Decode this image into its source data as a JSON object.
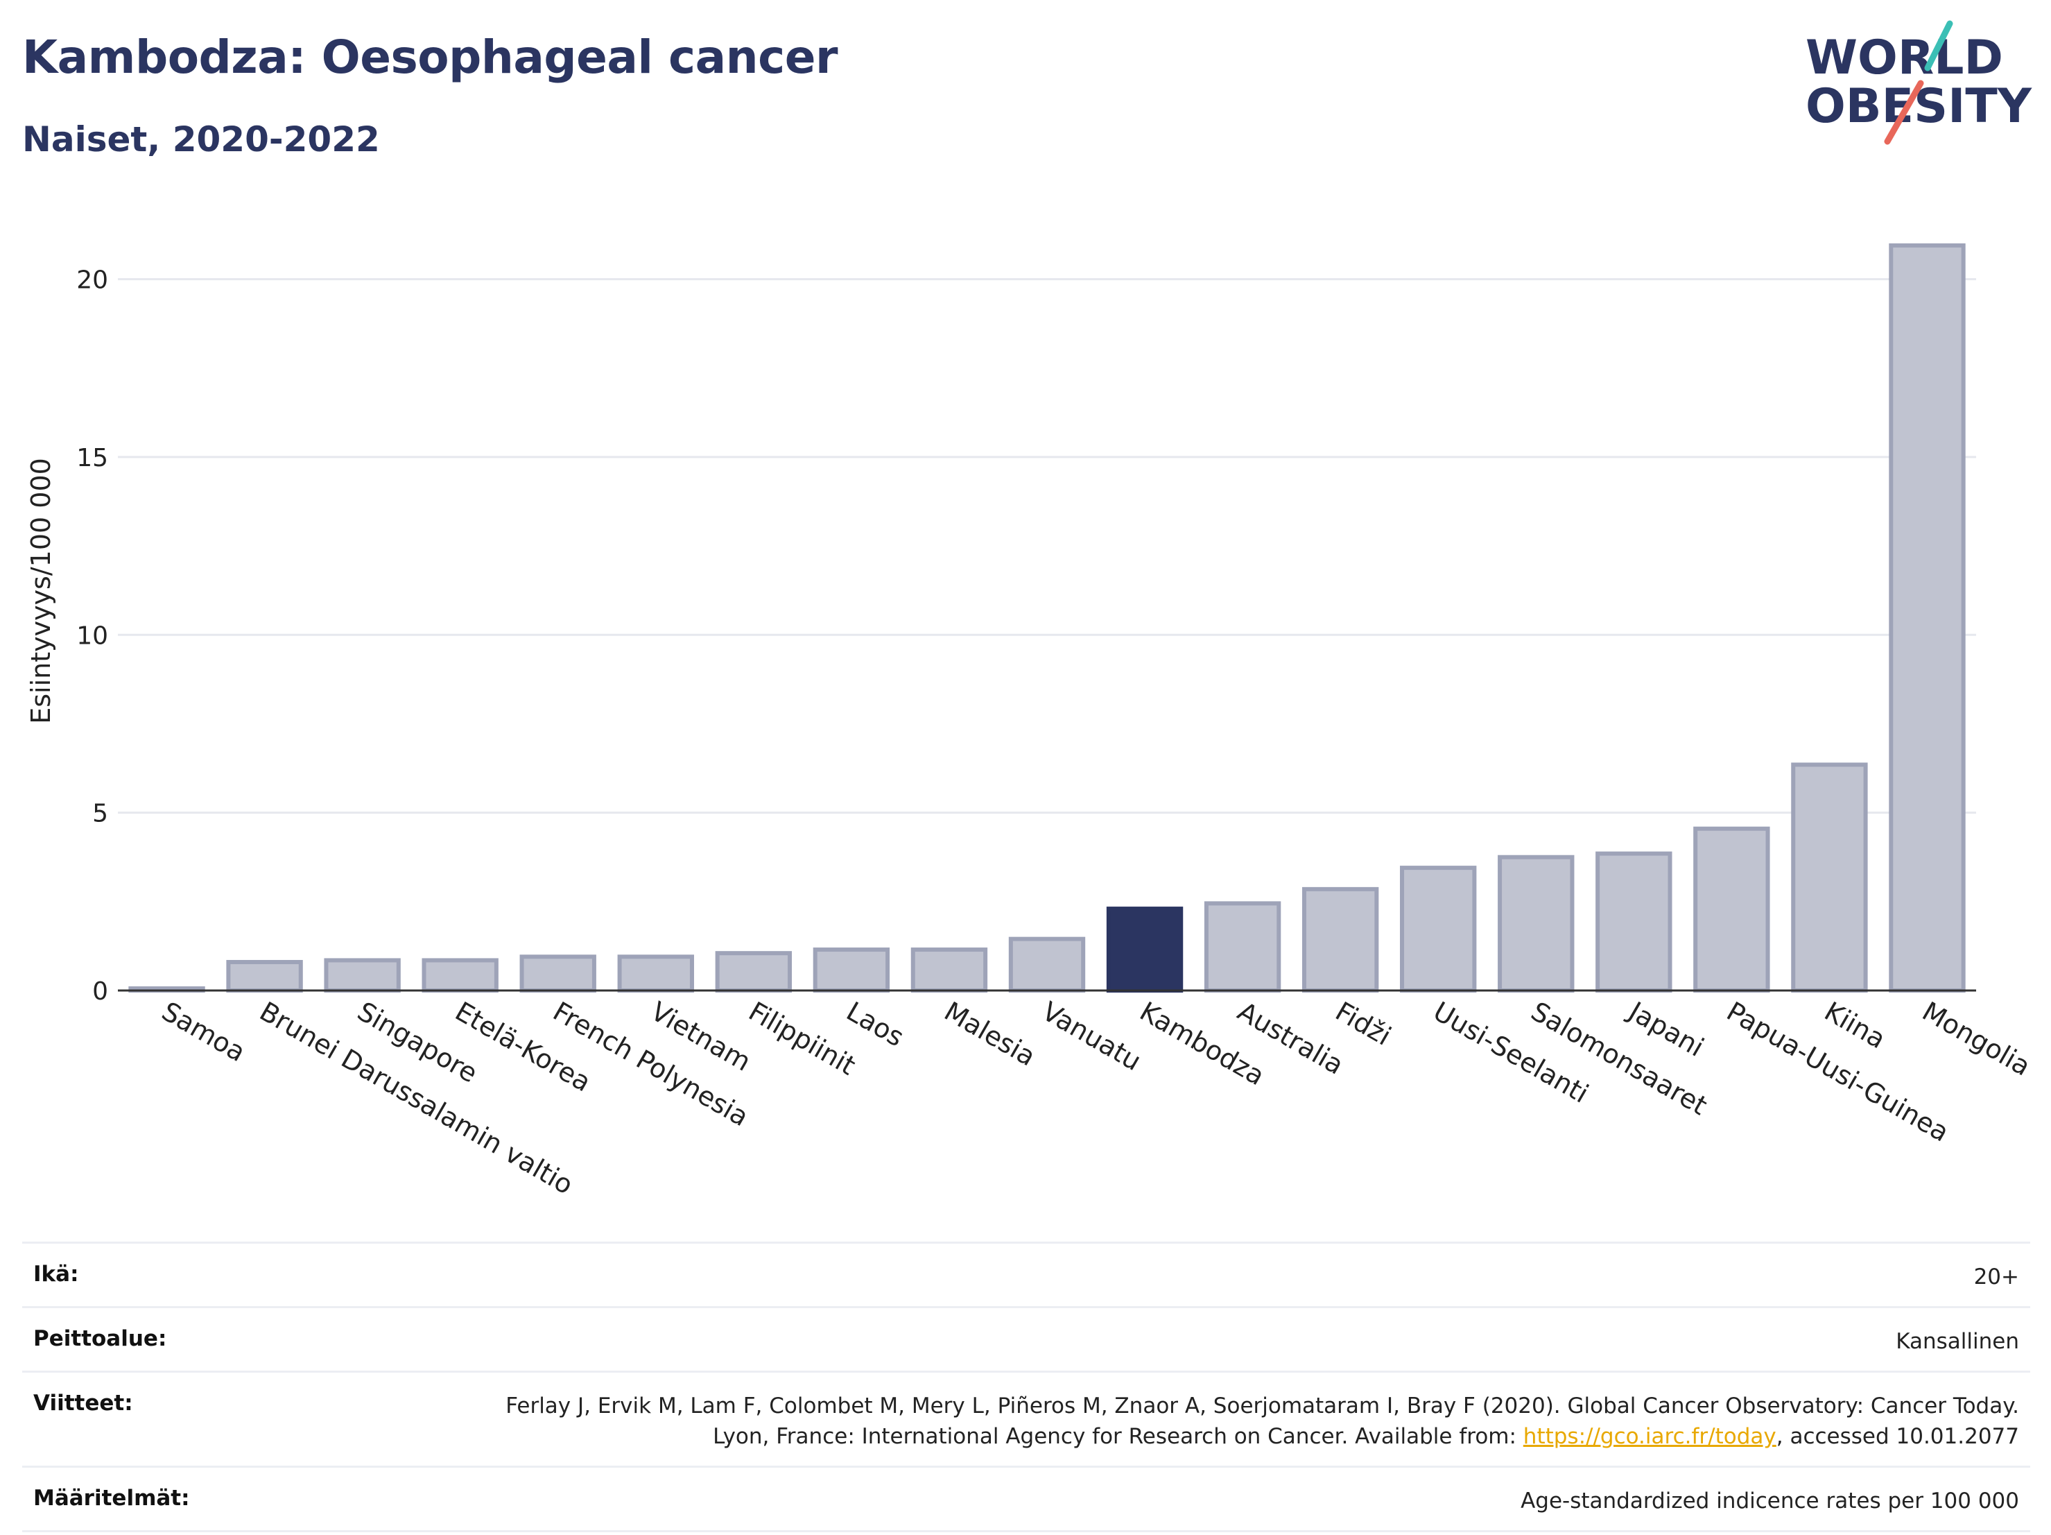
{
  "header": {
    "title": "Kambodza: Oesophageal cancer",
    "subtitle": "Naiset, 2020-2022"
  },
  "logo": {
    "line1": "WORLD",
    "line2": "OBESITY",
    "text_color": "#2b3561",
    "accent_teal": "#3bbfb5",
    "accent_coral": "#e8675a"
  },
  "colors": {
    "bar": "#c0c3d0",
    "bar_border": "#9ea3b8",
    "highlight": "#2b3561",
    "grid": "#e6e8ee",
    "axis": "#333333"
  },
  "chart_data": {
    "type": "bar",
    "title": "Kambodza: Oesophageal cancer",
    "subtitle": "Naiset, 2020-2022",
    "xlabel": "",
    "ylabel": "Esiintyvyys/100 000",
    "ylim": [
      0,
      22
    ],
    "yticks": [
      0,
      5,
      10,
      15,
      20
    ],
    "grid": true,
    "highlight": "Kambodza",
    "categories": [
      "Samoa",
      "Brunei Darussalamin valtio",
      "Singapore",
      "Etelä-Korea",
      "French Polynesia",
      "Vietnam",
      "Filippiinit",
      "Laos",
      "Malesia",
      "Vanuatu",
      "Kambodza",
      "Australia",
      "Fidži",
      "Uusi-Seelanti",
      "Salomonsaaret",
      "Japani",
      "Papua-Uusi-Guinea",
      "Kiina",
      "Mongolia"
    ],
    "values": [
      0.05,
      0.8,
      0.85,
      0.85,
      0.95,
      0.95,
      1.05,
      1.15,
      1.15,
      1.45,
      2.3,
      2.45,
      2.85,
      3.45,
      3.75,
      3.85,
      4.55,
      6.35,
      20.95
    ]
  },
  "info": {
    "rows": [
      {
        "key": "Ikä:",
        "value": "20+"
      },
      {
        "key": "Peittoalue:",
        "value": "Kansallinen"
      },
      {
        "key": "Viitteet:",
        "value_before": "Ferlay J, Ervik M, Lam F, Colombet M, Mery L, Piñeros M, Znaor A, Soerjomataram I, Bray F (2020). Global Cancer Observatory: Cancer Today. Lyon, France: International Agency for Research on Cancer. Available from: ",
        "link": "https://gco.iarc.fr/today",
        "value_after": ", accessed 10.01.2077"
      },
      {
        "key": "Määritelmät:",
        "value": "Age-standardized indicence rates per 100 000"
      }
    ]
  }
}
